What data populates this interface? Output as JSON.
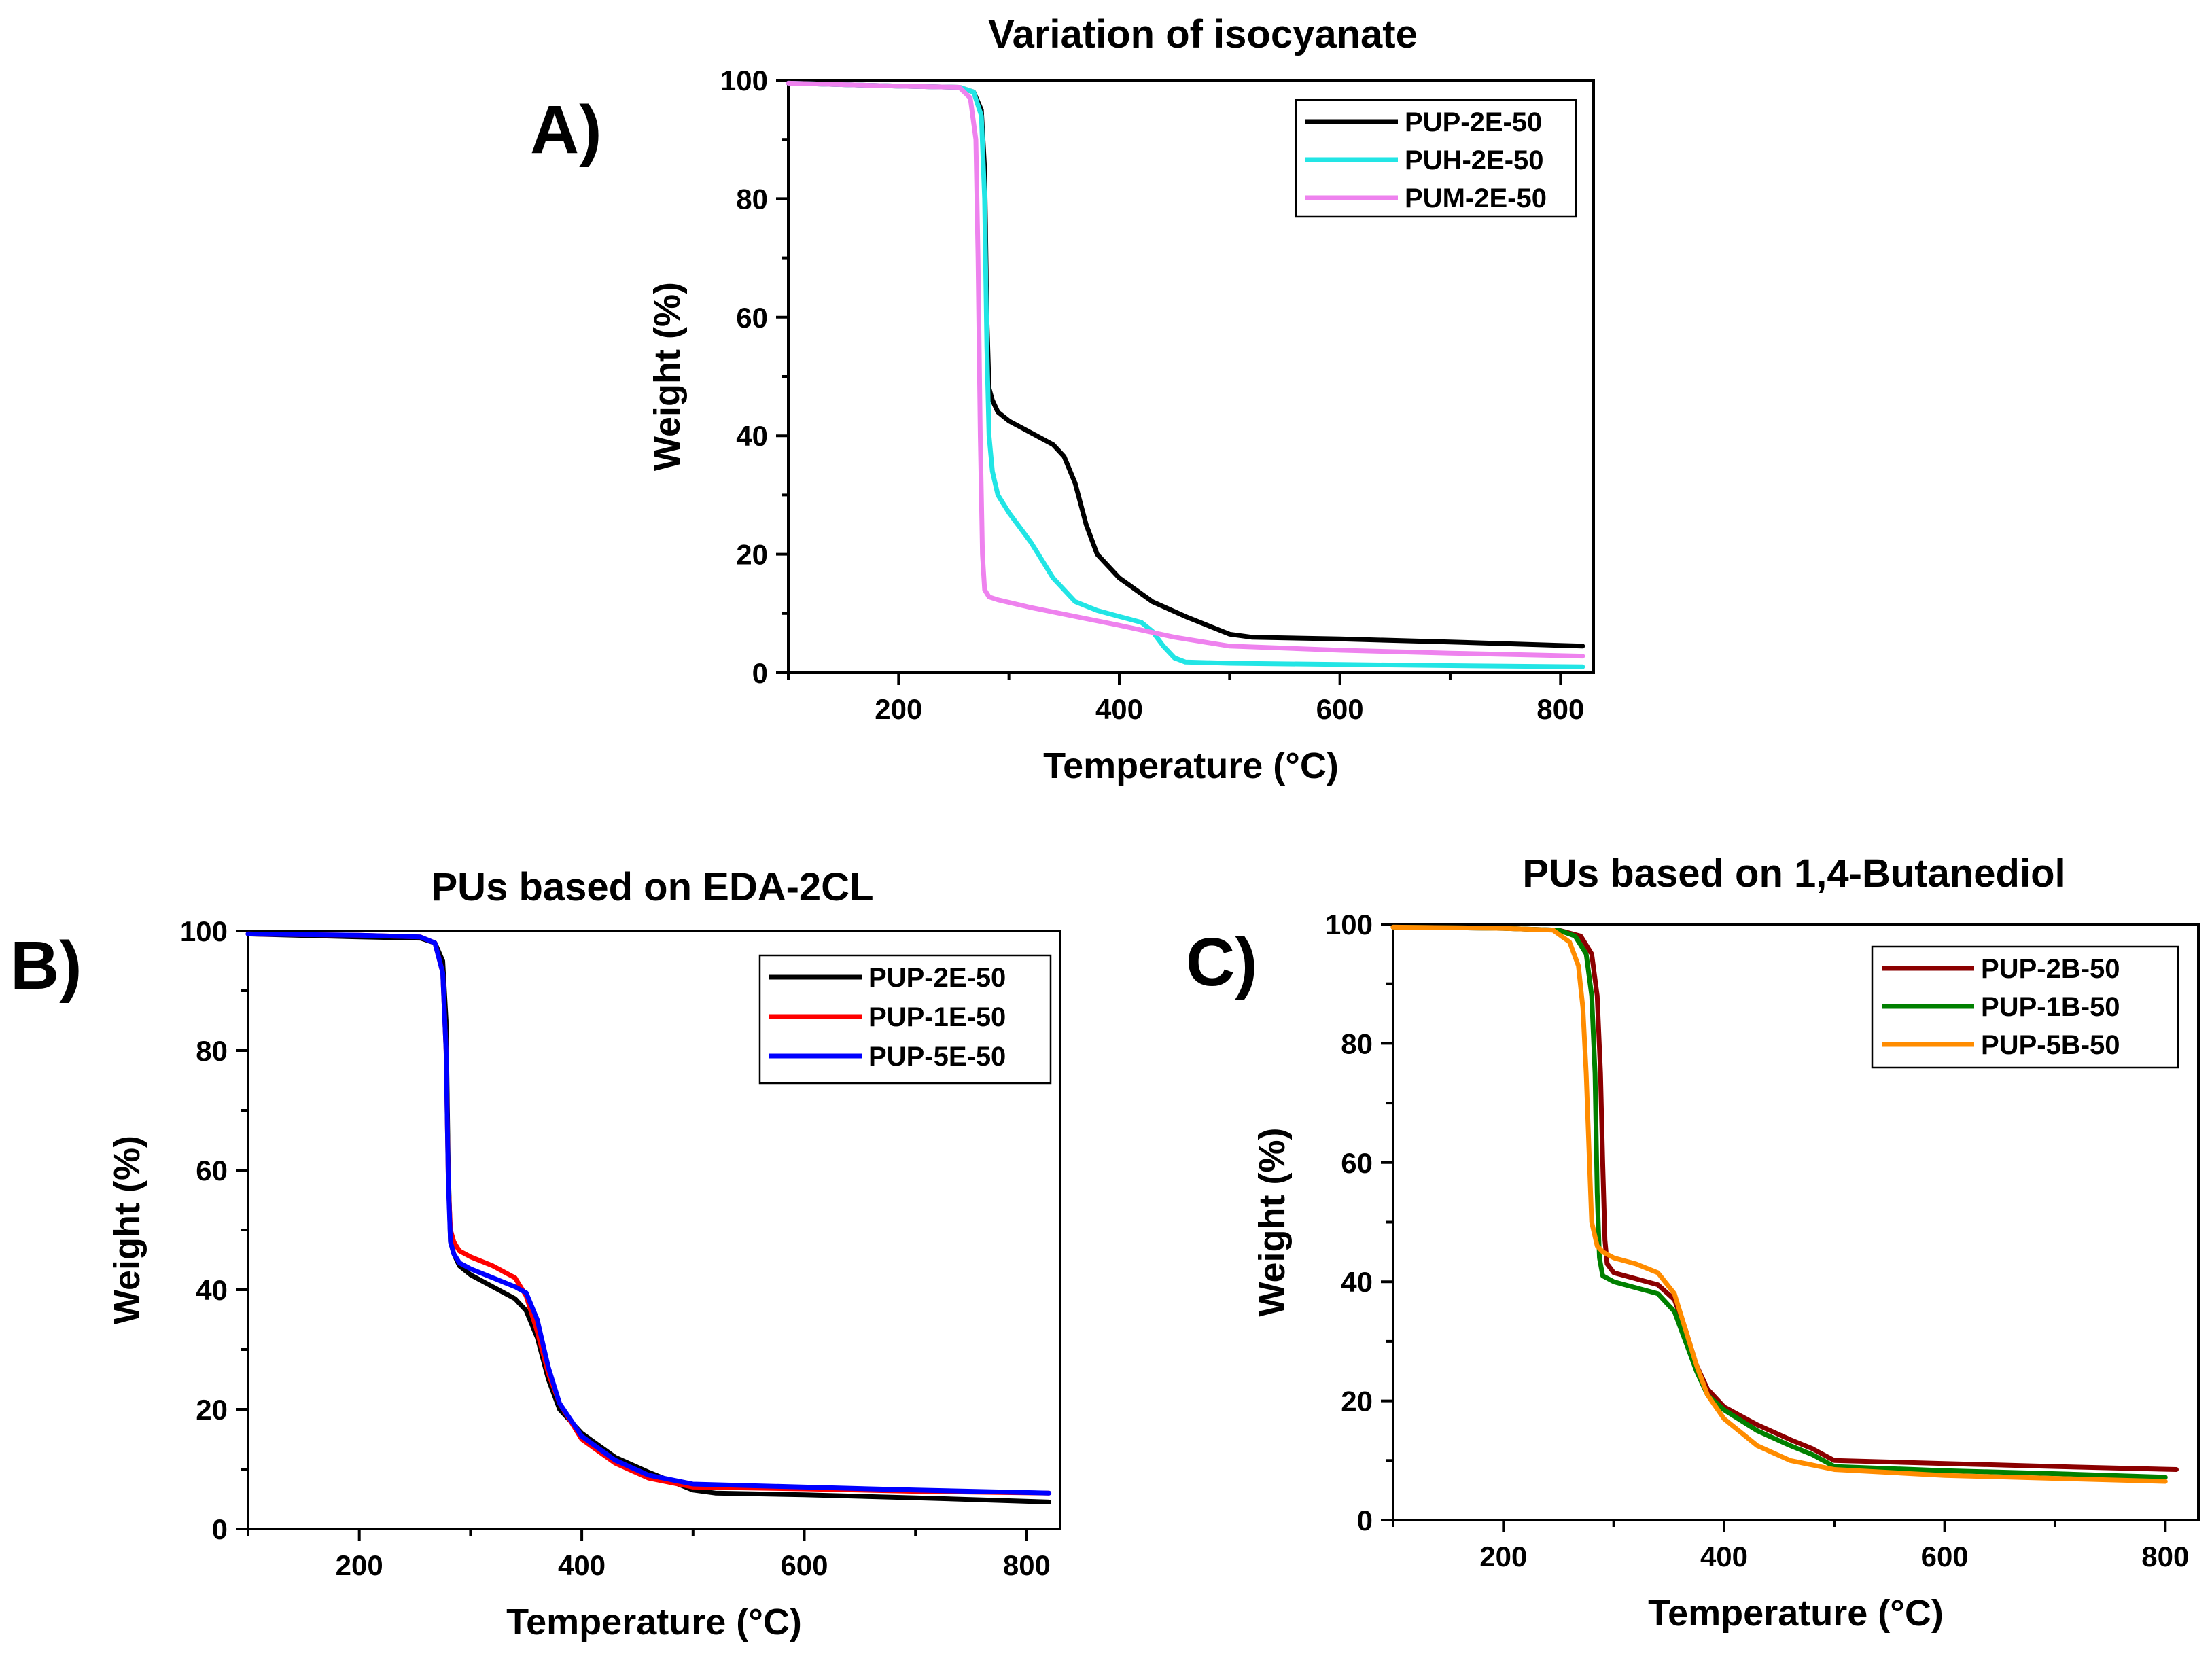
{
  "chart_data": [
    {
      "id": "A",
      "type": "line",
      "panel_label": "A)",
      "title": "Variation of isocyanate",
      "xlabel": "Temperature (°C)",
      "ylabel": "Weight (%)",
      "xlim": [
        100,
        830
      ],
      "ylim": [
        0,
        100
      ],
      "xticks": [
        200,
        400,
        600,
        800
      ],
      "yticks": [
        0,
        20,
        40,
        60,
        80,
        100
      ],
      "legend_position": "top-right",
      "series": [
        {
          "name": "PUP-2E-50",
          "color": "#000000",
          "x": [
            100,
            200,
            255,
            268,
            275,
            278,
            280,
            282,
            285,
            290,
            300,
            320,
            340,
            350,
            360,
            370,
            380,
            400,
            430,
            460,
            500,
            520,
            600,
            700,
            820
          ],
          "y": [
            99.5,
            99,
            98.8,
            98,
            95,
            85,
            60,
            48,
            46,
            44,
            42.5,
            40.5,
            38.5,
            36.5,
            32,
            25,
            20,
            16,
            12,
            9.5,
            6.5,
            6,
            5.7,
            5.2,
            4.5
          ]
        },
        {
          "name": "PUH-2E-50",
          "color": "#22e5e5",
          "x": [
            100,
            200,
            255,
            268,
            275,
            278,
            280,
            282,
            285,
            290,
            300,
            320,
            340,
            360,
            380,
            400,
            420,
            430,
            440,
            450,
            460,
            500,
            600,
            700,
            820
          ],
          "y": [
            99.5,
            99,
            98.8,
            98,
            94,
            80,
            55,
            40,
            34,
            30,
            27,
            22,
            16,
            12,
            10.5,
            9.5,
            8.5,
            7,
            4.5,
            2.5,
            1.8,
            1.6,
            1.4,
            1.2,
            1
          ]
        },
        {
          "name": "PUM-2E-50",
          "color": "#ee82ee",
          "x": [
            100,
            200,
            255,
            265,
            270,
            272,
            274,
            276,
            278,
            282,
            290,
            320,
            360,
            400,
            450,
            500,
            600,
            700,
            820
          ],
          "y": [
            99.5,
            99,
            98.8,
            97,
            90,
            70,
            40,
            20,
            14,
            12.8,
            12.3,
            11,
            9.5,
            8,
            6,
            4.5,
            3.8,
            3.3,
            2.8
          ]
        }
      ]
    },
    {
      "id": "B",
      "type": "line",
      "panel_label": "B)",
      "title": "PUs based on EDA-2CL",
      "xlabel": "Temperature (°C)",
      "ylabel": "Weight (%)",
      "xlim": [
        100,
        830
      ],
      "ylim": [
        0,
        100
      ],
      "xticks": [
        200,
        400,
        600,
        800
      ],
      "yticks": [
        0,
        20,
        40,
        60,
        80,
        100
      ],
      "legend_position": "top-right",
      "series": [
        {
          "name": "PUP-2E-50",
          "color": "#000000",
          "x": [
            100,
            200,
            255,
            268,
            275,
            278,
            280,
            282,
            285,
            290,
            300,
            320,
            340,
            350,
            360,
            370,
            380,
            400,
            430,
            460,
            500,
            520,
            600,
            700,
            820
          ],
          "y": [
            99.5,
            99,
            98.8,
            98,
            95,
            85,
            60,
            48,
            46,
            44,
            42.5,
            40.5,
            38.5,
            36.5,
            32,
            25,
            20,
            16,
            12,
            9.5,
            6.5,
            6,
            5.7,
            5.2,
            4.5
          ]
        },
        {
          "name": "PUP-1E-50",
          "color": "#ff0000",
          "x": [
            100,
            200,
            255,
            268,
            275,
            278,
            280,
            282,
            285,
            290,
            300,
            320,
            340,
            350,
            360,
            370,
            380,
            400,
            430,
            460,
            500,
            600,
            700,
            820
          ],
          "y": [
            99.5,
            99.3,
            99,
            98,
            93,
            80,
            58,
            50,
            48,
            46.5,
            45.5,
            44,
            42,
            39,
            33,
            26,
            21,
            15,
            11,
            8.5,
            7,
            6.7,
            6.3,
            6
          ]
        },
        {
          "name": "PUP-5E-50",
          "color": "#0000ff",
          "x": [
            100,
            200,
            255,
            268,
            275,
            278,
            280,
            282,
            285,
            290,
            300,
            320,
            340,
            350,
            360,
            370,
            380,
            400,
            430,
            460,
            500,
            600,
            700,
            820
          ],
          "y": [
            99.5,
            99.3,
            99,
            98,
            93,
            80,
            58,
            48,
            46,
            44.5,
            43.5,
            42,
            40.5,
            39.5,
            35,
            27,
            21,
            15.5,
            11.5,
            9,
            7.5,
            7,
            6.5,
            6
          ]
        }
      ]
    },
    {
      "id": "C",
      "type": "line",
      "panel_label": "C)",
      "title": "PUs based on 1,4-Butanediol",
      "xlabel": "Temperature (°C)",
      "ylabel": "Weight (%)",
      "xlim": [
        100,
        830
      ],
      "ylim": [
        0,
        100
      ],
      "xticks": [
        200,
        400,
        600,
        800
      ],
      "yticks": [
        0,
        20,
        40,
        60,
        80,
        100
      ],
      "legend_position": "top-right",
      "series": [
        {
          "name": "PUP-2B-50",
          "color": "#8b0000",
          "x": [
            100,
            200,
            250,
            270,
            280,
            285,
            288,
            290,
            292,
            294,
            300,
            320,
            340,
            355,
            365,
            375,
            385,
            400,
            430,
            460,
            480,
            500,
            600,
            700,
            810
          ],
          "y": [
            99.5,
            99.3,
            99,
            98,
            95,
            88,
            75,
            60,
            47,
            43,
            41.5,
            40.5,
            39.5,
            37,
            32,
            26,
            22,
            19,
            16,
            13.5,
            12,
            10,
            9.5,
            9,
            8.5
          ]
        },
        {
          "name": "PUP-1B-50",
          "color": "#008000",
          "x": [
            100,
            200,
            250,
            265,
            275,
            280,
            283,
            285,
            287,
            290,
            300,
            320,
            340,
            355,
            365,
            375,
            385,
            400,
            430,
            460,
            480,
            500,
            600,
            700,
            800
          ],
          "y": [
            99.5,
            99.3,
            99,
            98,
            95,
            88,
            75,
            55,
            44,
            41,
            40,
            39,
            38,
            35,
            30,
            25,
            21,
            18.5,
            15,
            12.5,
            11,
            9,
            8.3,
            7.8,
            7.2
          ]
        },
        {
          "name": "PUP-5B-50",
          "color": "#ff8c00",
          "x": [
            100,
            200,
            245,
            260,
            268,
            272,
            275,
            278,
            280,
            285,
            290,
            300,
            320,
            340,
            355,
            365,
            375,
            385,
            400,
            430,
            460,
            500,
            600,
            700,
            800
          ],
          "y": [
            99.5,
            99.3,
            99,
            97,
            93,
            86,
            75,
            60,
            50,
            46,
            45,
            44,
            43,
            41.5,
            38,
            32,
            26,
            21,
            17,
            12.5,
            10,
            8.5,
            7.5,
            7,
            6.5
          ]
        }
      ]
    }
  ]
}
